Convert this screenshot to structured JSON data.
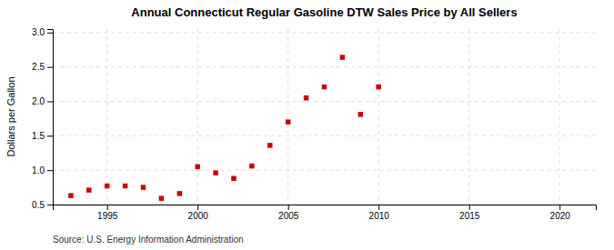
{
  "chart_data": {
    "type": "scatter",
    "title": "Annual Connecticut Regular Gasoline DTW Sales Price by All Sellers",
    "ylabel": "Dollars per Gallon",
    "source": "Source: U.S. Energy Information Administration",
    "x": [
      1993,
      1994,
      1995,
      1996,
      1997,
      1998,
      1999,
      2000,
      2001,
      2002,
      2003,
      2004,
      2005,
      2006,
      2007,
      2008,
      2009,
      2010
    ],
    "values": [
      0.63,
      0.71,
      0.77,
      0.77,
      0.75,
      0.59,
      0.66,
      1.05,
      0.96,
      0.88,
      1.06,
      1.36,
      1.7,
      2.05,
      2.21,
      2.64,
      1.81,
      2.21
    ],
    "color": "#cc0000",
    "marker": "square",
    "xlim": [
      1992,
      2022
    ],
    "xticks": [
      1995,
      2000,
      2005,
      2010,
      2015,
      2020
    ],
    "ylim": [
      0.5,
      3.05
    ],
    "yticks": [
      0.5,
      {
        "value": 1.0,
        "label": "1.0"
      },
      1.5,
      {
        "value": 2.0,
        "label": "2.0"
      },
      2.5,
      {
        "value": 3.0,
        "label": "3.0"
      }
    ],
    "grid": true
  }
}
